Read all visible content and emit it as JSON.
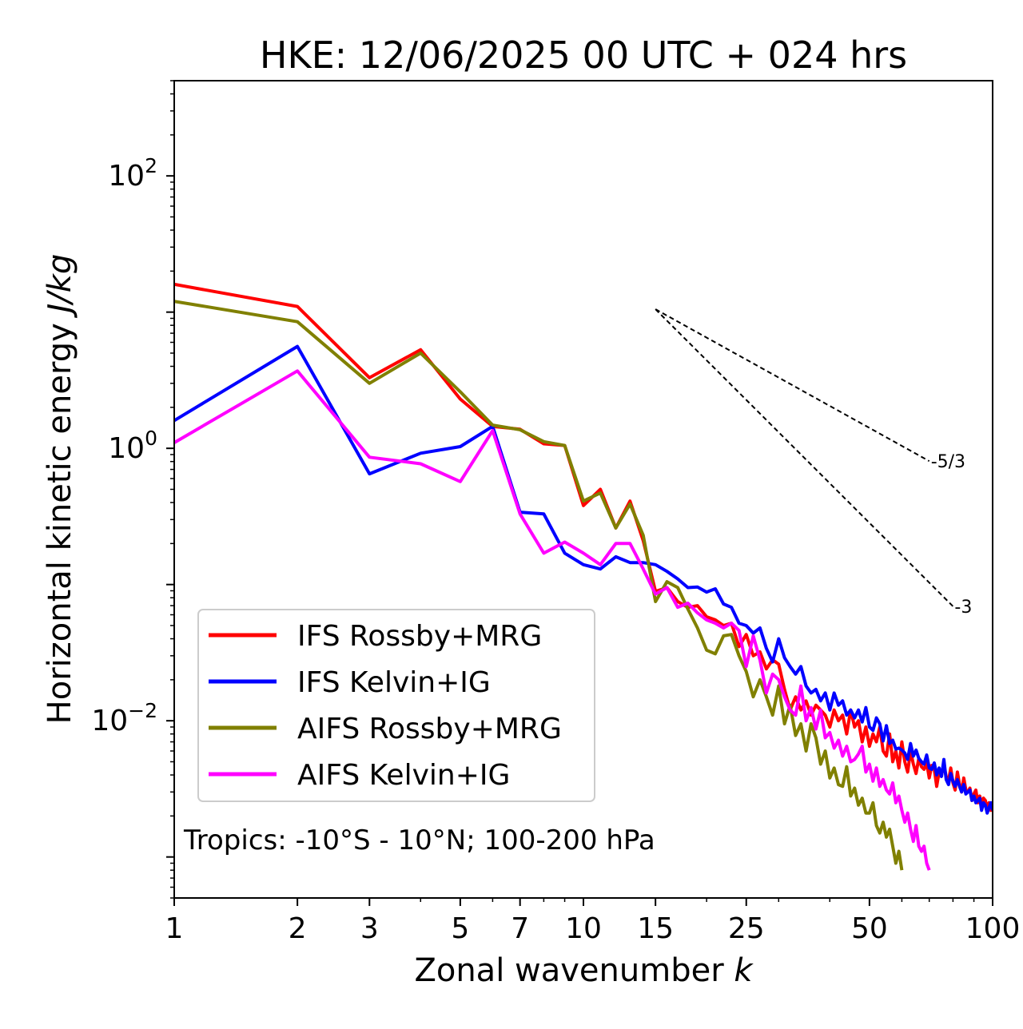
{
  "chart_data": {
    "type": "line",
    "title": "HKE: 12/06/2025 00 UTC + 024 hrs",
    "xlabel": "Zonal wavenumber ",
    "xlabel_italic": "k",
    "ylabel": "Horizontal kinetic energy ",
    "ylabel_italic": "J/kg",
    "xscale": "log",
    "yscale": "log",
    "xlim": [
      1,
      100
    ],
    "ylim": [
      0.0005,
      500
    ],
    "x_ticks": [
      {
        "value": 1,
        "label": "1"
      },
      {
        "value": 2,
        "label": "2"
      },
      {
        "value": 3,
        "label": "3"
      },
      {
        "value": 5,
        "label": "5"
      },
      {
        "value": 7,
        "label": "7"
      },
      {
        "value": 10,
        "label": "10"
      },
      {
        "value": 15,
        "label": "15"
      },
      {
        "value": 25,
        "label": "25"
      },
      {
        "value": 50,
        "label": "50"
      },
      {
        "value": 100,
        "label": "100"
      }
    ],
    "y_ticks": [
      {
        "value": 0.01,
        "base": "10",
        "exp": "−2"
      },
      {
        "value": 1,
        "base": "10",
        "exp": "0"
      },
      {
        "value": 100,
        "base": "10",
        "exp": "2"
      }
    ],
    "annotation": "Tropics: -10°S - 10°N; 100-200 hPa",
    "legend_position": "lower-left",
    "reference_slopes": [
      {
        "label": "-5/3",
        "x_range": [
          15,
          70
        ],
        "y_start": 10.5
      },
      {
        "label": "-3",
        "x_range": [
          15,
          80
        ],
        "y_start": 10.5
      }
    ],
    "series": [
      {
        "name": "IFS Rossby+MRG",
        "color": "#ff0000",
        "x": [
          1,
          2,
          3,
          4,
          5,
          6,
          7,
          8,
          9,
          10,
          11,
          12,
          13,
          14,
          15,
          16,
          17,
          18,
          19,
          20,
          21,
          22,
          23,
          24,
          25,
          26,
          27,
          28,
          29,
          30,
          31,
          32,
          33,
          34,
          35,
          36,
          37,
          38,
          39,
          40,
          41,
          42,
          43,
          44,
          45,
          46,
          47,
          48,
          49,
          50,
          51,
          52,
          53,
          54,
          55,
          56,
          57,
          58,
          59,
          60,
          61,
          62,
          63,
          64,
          65,
          66,
          67,
          68,
          69,
          70,
          71,
          72,
          73,
          74,
          75,
          76,
          77,
          78,
          79,
          80,
          81,
          82,
          83,
          84,
          85,
          86,
          87,
          88,
          89,
          90,
          91,
          92,
          93,
          94,
          95,
          96,
          97,
          98,
          99,
          100
        ],
        "y": [
          16,
          11,
          3.3,
          5.3,
          2.3,
          1.45,
          1.38,
          1.08,
          1.05,
          0.38,
          0.5,
          0.26,
          0.41,
          0.21,
          0.089,
          0.095,
          0.075,
          0.068,
          0.07,
          0.058,
          0.055,
          0.05,
          0.052,
          0.035,
          0.043,
          0.03,
          0.032,
          0.024,
          0.028,
          0.026,
          0.017,
          0.012,
          0.015,
          0.012,
          0.014,
          0.011,
          0.013,
          0.012,
          0.011,
          0.009,
          0.012,
          0.01,
          0.011,
          0.008,
          0.012,
          0.009,
          0.01,
          0.007,
          0.009,
          0.0065,
          0.008,
          0.007,
          0.009,
          0.006,
          0.0055,
          0.008,
          0.005,
          0.006,
          0.0045,
          0.007,
          0.005,
          0.0042,
          0.006,
          0.0048,
          0.0041,
          0.0053,
          0.0046,
          0.0044,
          0.0049,
          0.0038,
          0.0047,
          0.0044,
          0.0033,
          0.0042,
          0.004,
          0.0047,
          0.0039,
          0.0036,
          0.0045,
          0.0035,
          0.0031,
          0.0042,
          0.0034,
          0.003,
          0.0038,
          0.0031,
          0.003,
          0.0032,
          0.0026,
          0.0029,
          0.0031,
          0.0025,
          0.0028,
          0.0024,
          0.0027,
          0.0026,
          0.0023,
          0.0025,
          0.0022,
          0.0024
        ]
      },
      {
        "name": "IFS Kelvin+IG",
        "color": "#0000ff",
        "x": [
          1,
          2,
          3,
          4,
          5,
          6,
          7,
          8,
          9,
          10,
          11,
          12,
          13,
          14,
          15,
          16,
          17,
          18,
          19,
          20,
          21,
          22,
          23,
          24,
          25,
          26,
          27,
          28,
          29,
          30,
          31,
          32,
          33,
          34,
          35,
          36,
          37,
          38,
          39,
          40,
          41,
          42,
          43,
          44,
          45,
          46,
          47,
          48,
          49,
          50,
          51,
          52,
          53,
          54,
          55,
          56,
          57,
          58,
          59,
          60,
          61,
          62,
          63,
          64,
          65,
          66,
          67,
          68,
          69,
          70,
          71,
          72,
          73,
          74,
          75,
          76,
          77,
          78,
          79,
          80,
          81,
          82,
          83,
          84,
          85,
          86,
          87,
          88,
          89,
          90,
          91,
          92,
          93,
          94,
          95,
          96,
          97,
          98,
          99,
          100
        ],
        "y": [
          1.6,
          5.6,
          0.65,
          0.92,
          1.03,
          1.45,
          0.34,
          0.33,
          0.17,
          0.14,
          0.13,
          0.16,
          0.145,
          0.145,
          0.14,
          0.125,
          0.11,
          0.095,
          0.096,
          0.088,
          0.093,
          0.072,
          0.068,
          0.052,
          0.05,
          0.044,
          0.048,
          0.034,
          0.027,
          0.04,
          0.029,
          0.025,
          0.022,
          0.025,
          0.018,
          0.016,
          0.017,
          0.014,
          0.016,
          0.012,
          0.016,
          0.013,
          0.014,
          0.011,
          0.012,
          0.0105,
          0.012,
          0.0098,
          0.0125,
          0.009,
          0.0085,
          0.0105,
          0.0095,
          0.0071,
          0.0092,
          0.0068,
          0.0072,
          0.0062,
          0.0063,
          0.0061,
          0.0058,
          0.0052,
          0.0068,
          0.0055,
          0.0061,
          0.0053,
          0.005,
          0.0048,
          0.0056,
          0.0045,
          0.0044,
          0.0049,
          0.004,
          0.0045,
          0.0039,
          0.0052,
          0.0037,
          0.0034,
          0.0041,
          0.0036,
          0.0033,
          0.0037,
          0.0033,
          0.003,
          0.0034,
          0.0029,
          0.003,
          0.0031,
          0.0026,
          0.0028,
          0.0025,
          0.0026,
          0.0027,
          0.0022,
          0.0025,
          0.0024,
          0.0021,
          0.0023,
          0.0025,
          0.0022
        ]
      },
      {
        "name": "AIFS Rossby+MRG",
        "color": "#808000",
        "x": [
          1,
          2,
          3,
          4,
          5,
          6,
          7,
          8,
          9,
          10,
          11,
          12,
          13,
          14,
          15,
          16,
          17,
          18,
          19,
          20,
          21,
          22,
          23,
          24,
          25,
          26,
          27,
          28,
          29,
          30,
          31,
          32,
          33,
          34,
          35,
          36,
          37,
          38,
          39,
          40,
          41,
          42,
          43,
          44,
          45,
          46,
          47,
          48,
          49,
          50,
          51,
          52,
          53,
          54,
          55,
          56,
          57,
          58,
          59,
          60
        ],
        "y": [
          12,
          8.5,
          3.0,
          5.0,
          2.6,
          1.48,
          1.37,
          1.12,
          1.05,
          0.41,
          0.47,
          0.26,
          0.39,
          0.23,
          0.075,
          0.105,
          0.095,
          0.066,
          0.048,
          0.033,
          0.031,
          0.042,
          0.043,
          0.03,
          0.023,
          0.015,
          0.02,
          0.015,
          0.011,
          0.018,
          0.0095,
          0.013,
          0.0078,
          0.0095,
          0.006,
          0.0095,
          0.0075,
          0.0048,
          0.006,
          0.0038,
          0.0045,
          0.0034,
          0.0033,
          0.0046,
          0.0028,
          0.0032,
          0.0024,
          0.0027,
          0.0021,
          0.0021,
          0.0025,
          0.0017,
          0.0015,
          0.0018,
          0.0014,
          0.0016,
          0.0012,
          0.0009,
          0.0011,
          0.0008
        ]
      },
      {
        "name": "AIFS Kelvin+IG",
        "color": "#ff00ff",
        "x": [
          1,
          2,
          3,
          4,
          5,
          6,
          7,
          8,
          9,
          10,
          11,
          12,
          13,
          14,
          15,
          16,
          17,
          18,
          19,
          20,
          21,
          22,
          23,
          24,
          25,
          26,
          27,
          28,
          29,
          30,
          31,
          32,
          33,
          34,
          35,
          36,
          37,
          38,
          39,
          40,
          41,
          42,
          43,
          44,
          45,
          46,
          47,
          48,
          49,
          50,
          51,
          52,
          53,
          54,
          55,
          56,
          57,
          58,
          59,
          60,
          61,
          62,
          63,
          64,
          65,
          66,
          67,
          68,
          69,
          70
        ],
        "y": [
          1.1,
          3.7,
          0.86,
          0.77,
          0.57,
          1.35,
          0.33,
          0.17,
          0.205,
          0.17,
          0.14,
          0.2,
          0.2,
          0.13,
          0.085,
          0.095,
          0.068,
          0.073,
          0.062,
          0.055,
          0.052,
          0.048,
          0.052,
          0.046,
          0.025,
          0.042,
          0.028,
          0.016,
          0.022,
          0.02,
          0.015,
          0.012,
          0.011,
          0.018,
          0.01,
          0.0125,
          0.0087,
          0.012,
          0.0075,
          0.0082,
          0.0063,
          0.0072,
          0.0055,
          0.0065,
          0.005,
          0.0052,
          0.0057,
          0.0065,
          0.0042,
          0.0048,
          0.0036,
          0.0045,
          0.0033,
          0.0037,
          0.0031,
          0.0029,
          0.0035,
          0.0025,
          0.0028,
          0.0022,
          0.0018,
          0.0021,
          0.0016,
          0.0013,
          0.0017,
          0.0012,
          0.0011,
          0.0012,
          0.0009,
          0.0008
        ]
      }
    ]
  }
}
